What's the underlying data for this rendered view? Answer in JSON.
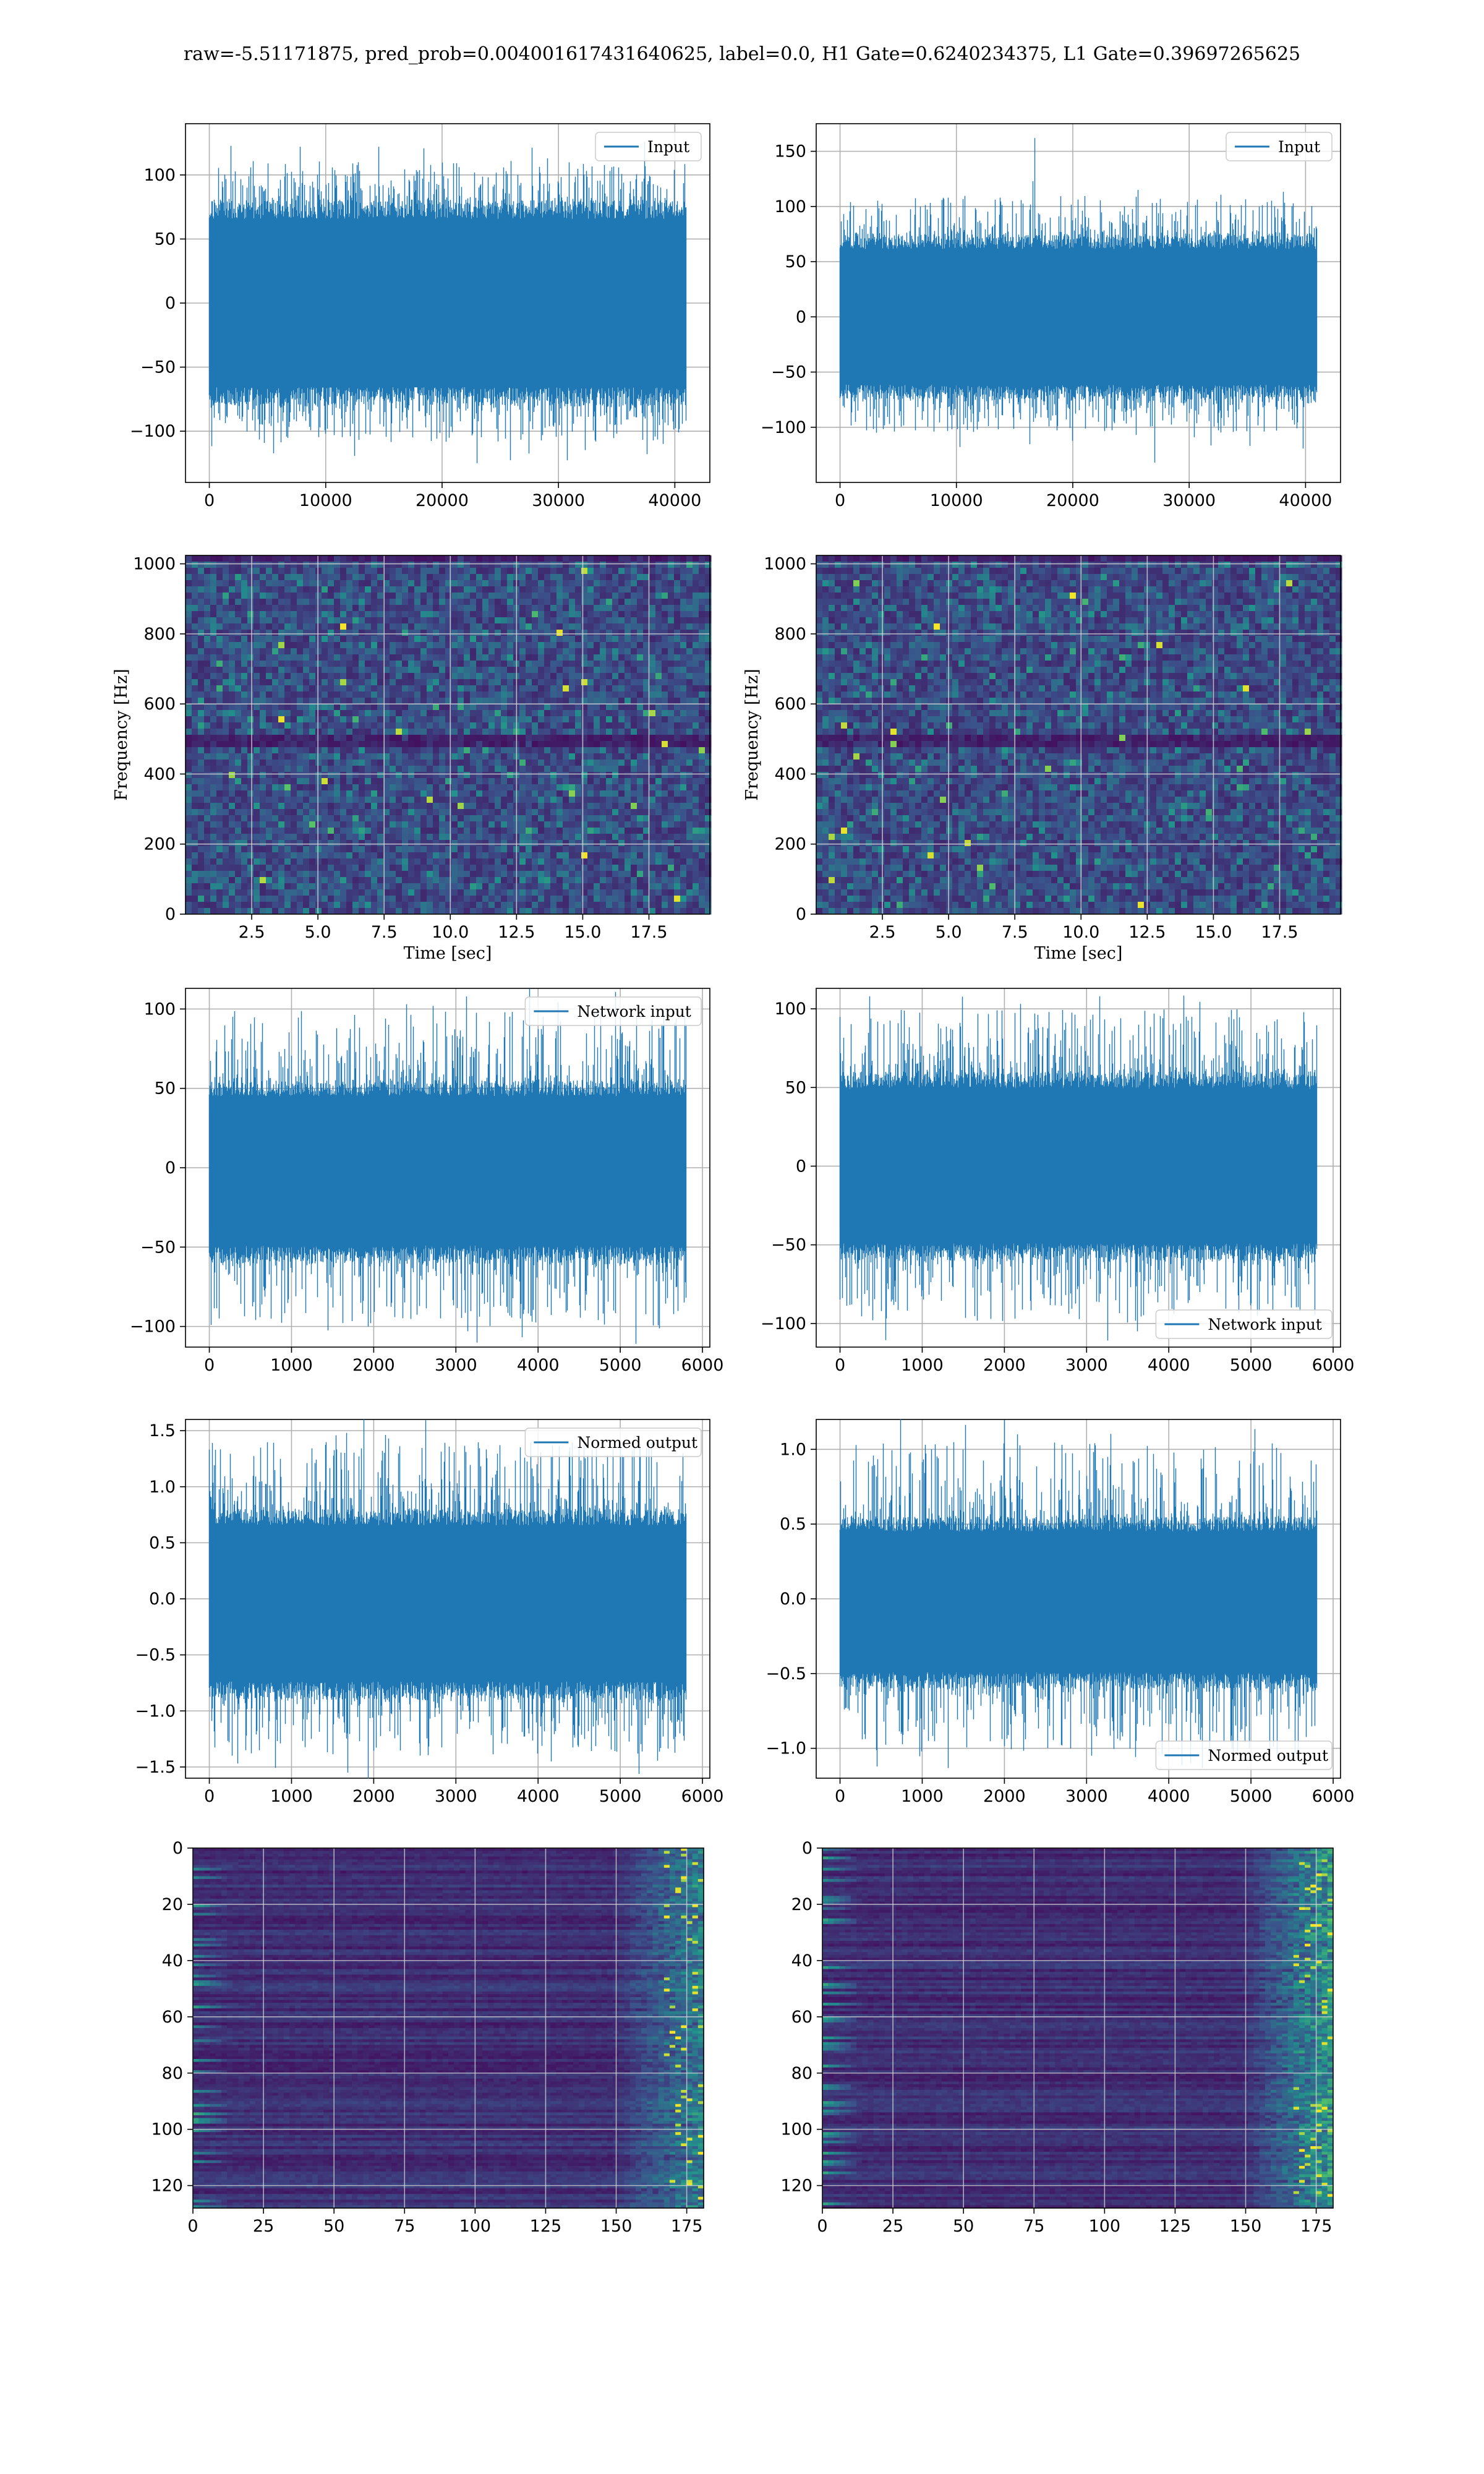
{
  "figure": {
    "title": "raw=-5.51171875, pred_prob=0.004001617431640625, label=0.0, H1 Gate=0.6240234375, L1 Gate=0.39697265625"
  },
  "colors": {
    "line": "#1f77b4",
    "grid": "#b0b0b0",
    "axes": "#000000",
    "heatmap_low": "#440154",
    "heatmap_mid": "#21918c",
    "heatmap_high": "#fde725"
  },
  "chart_data": [
    {
      "id": "h1-input",
      "type": "line",
      "title": "",
      "xlabel": "",
      "ylabel": "",
      "xlim": [
        -2048,
        43008
      ],
      "ylim": [
        -140,
        140
      ],
      "xticks": [
        0,
        10000,
        20000,
        30000,
        40000
      ],
      "yticks": [
        -100,
        -50,
        0,
        50,
        100
      ],
      "grid": true,
      "legend": {
        "position": "upper-right",
        "labels": [
          "Input"
        ]
      },
      "series": [
        {
          "name": "Input",
          "x_range": [
            0,
            40960
          ],
          "n_points": 40960,
          "envelope": [
            -110,
            110
          ],
          "typical": [
            -80,
            80
          ],
          "peaks": [
            122,
            -125
          ]
        }
      ]
    },
    {
      "id": "l1-input",
      "type": "line",
      "title": "",
      "xlabel": "",
      "ylabel": "",
      "xlim": [
        -2048,
        43008
      ],
      "ylim": [
        -150,
        175
      ],
      "xticks": [
        0,
        10000,
        20000,
        30000,
        40000
      ],
      "yticks": [
        -100,
        -50,
        0,
        50,
        100,
        150
      ],
      "grid": true,
      "legend": {
        "position": "upper-right",
        "labels": [
          "Input"
        ]
      },
      "series": [
        {
          "name": "Input",
          "x_range": [
            0,
            40960
          ],
          "n_points": 40960,
          "envelope": [
            -105,
            110
          ],
          "typical": [
            -75,
            75
          ],
          "peaks": [
            162,
            -132
          ]
        }
      ]
    },
    {
      "id": "h1-spectrogram",
      "type": "heatmap",
      "title": "",
      "xlabel": "Time [sec]",
      "ylabel": "Frequency [Hz]",
      "xlim": [
        0,
        19.8
      ],
      "ylim": [
        0,
        1024
      ],
      "xticks": [
        2.5,
        5.0,
        7.5,
        10.0,
        12.5,
        15.0,
        17.5
      ],
      "ytick_labels": [
        "0",
        "200",
        "400",
        "600",
        "800",
        "1000"
      ],
      "yticks": [
        0,
        200,
        400,
        600,
        800,
        1000
      ],
      "grid": true,
      "colormap": "viridis"
    },
    {
      "id": "l1-spectrogram",
      "type": "heatmap",
      "title": "",
      "xlabel": "Time [sec]",
      "ylabel": "Frequency [Hz]",
      "xlim": [
        0,
        19.8
      ],
      "ylim": [
        0,
        1024
      ],
      "xticks": [
        2.5,
        5.0,
        7.5,
        10.0,
        12.5,
        15.0,
        17.5
      ],
      "ytick_labels": [
        "0",
        "200",
        "400",
        "600",
        "800",
        "1000"
      ],
      "yticks": [
        0,
        200,
        400,
        600,
        800,
        1000
      ],
      "grid": true,
      "colormap": "viridis"
    },
    {
      "id": "h1-network-input",
      "type": "line",
      "title": "",
      "xlabel": "",
      "ylabel": "",
      "xlim": [
        -290,
        6090
      ],
      "ylim": [
        -113,
        113
      ],
      "xticks": [
        0,
        1000,
        2000,
        3000,
        4000,
        5000,
        6000
      ],
      "yticks": [
        -100,
        -50,
        0,
        50,
        100
      ],
      "grid": true,
      "legend": {
        "position": "upper-right",
        "labels": [
          "Network input"
        ]
      },
      "series": [
        {
          "name": "Network input",
          "x_range": [
            0,
            5800
          ],
          "n_points": 5800,
          "envelope": [
            -100,
            100
          ],
          "typical": [
            -60,
            55
          ],
          "peaks": [
            103,
            -103
          ]
        }
      ]
    },
    {
      "id": "l1-network-input",
      "type": "line",
      "title": "",
      "xlabel": "",
      "ylabel": "",
      "xlim": [
        -290,
        6090
      ],
      "ylim": [
        -115,
        113
      ],
      "xticks": [
        0,
        1000,
        2000,
        3000,
        4000,
        5000,
        6000
      ],
      "yticks": [
        -100,
        -50,
        0,
        50,
        100
      ],
      "grid": true,
      "legend": {
        "position": "lower-right",
        "labels": [
          "Network input"
        ]
      },
      "series": [
        {
          "name": "Network input",
          "x_range": [
            0,
            5800
          ],
          "n_points": 5800,
          "envelope": [
            -100,
            100
          ],
          "typical": [
            -60,
            60
          ],
          "peaks": [
            108,
            -105
          ]
        }
      ]
    },
    {
      "id": "h1-normed-output",
      "type": "line",
      "title": "",
      "xlabel": "",
      "ylabel": "",
      "xlim": [
        -290,
        6090
      ],
      "ylim": [
        -1.6,
        1.6
      ],
      "xticks": [
        0,
        1000,
        2000,
        3000,
        4000,
        5000,
        6000
      ],
      "yticks": [
        -1.5,
        -1.0,
        -0.5,
        0.0,
        0.5,
        1.0,
        1.5
      ],
      "grid": true,
      "legend": {
        "position": "upper-right",
        "labels": [
          "Normed output"
        ]
      },
      "series": [
        {
          "name": "Normed output",
          "x_range": [
            0,
            5800
          ],
          "n_points": 5800,
          "envelope": [
            -1.4,
            1.4
          ],
          "typical": [
            -0.9,
            0.8
          ],
          "peaks": [
            1.48,
            -1.45
          ]
        }
      ]
    },
    {
      "id": "l1-normed-output",
      "type": "line",
      "title": "",
      "xlabel": "",
      "ylabel": "",
      "xlim": [
        -290,
        6090
      ],
      "ylim": [
        -1.2,
        1.2
      ],
      "xticks": [
        0,
        1000,
        2000,
        3000,
        4000,
        5000,
        6000
      ],
      "yticks": [
        -1.0,
        -0.5,
        0.0,
        0.5,
        1.0
      ],
      "grid": true,
      "legend": {
        "position": "lower-right",
        "labels": [
          "Normed output"
        ]
      },
      "series": [
        {
          "name": "Normed output",
          "x_range": [
            0,
            5800
          ],
          "n_points": 5800,
          "envelope": [
            -1.05,
            1.05
          ],
          "typical": [
            -0.6,
            0.55
          ],
          "peaks": [
            1.1,
            -1.1
          ]
        }
      ]
    },
    {
      "id": "h1-feature-map",
      "type": "heatmap",
      "title": "",
      "xlabel": "",
      "ylabel": "",
      "xlim": [
        0,
        181
      ],
      "ylim": [
        128,
        0
      ],
      "xticks": [
        0,
        25,
        50,
        75,
        100,
        125,
        150,
        175
      ],
      "yticks": [
        0,
        20,
        40,
        60,
        80,
        100,
        120
      ],
      "grid": true,
      "colormap": "viridis",
      "note_visible": ""
    },
    {
      "id": "l1-feature-map",
      "type": "heatmap",
      "title": "",
      "xlabel": "",
      "ylabel": "",
      "xlim": [
        0,
        181
      ],
      "ylim": [
        128,
        0
      ],
      "xticks": [
        0,
        25,
        50,
        75,
        100,
        125,
        150,
        175
      ],
      "yticks": [
        0,
        20,
        40,
        60,
        80,
        100,
        120
      ],
      "grid": true,
      "colormap": "viridis"
    }
  ]
}
